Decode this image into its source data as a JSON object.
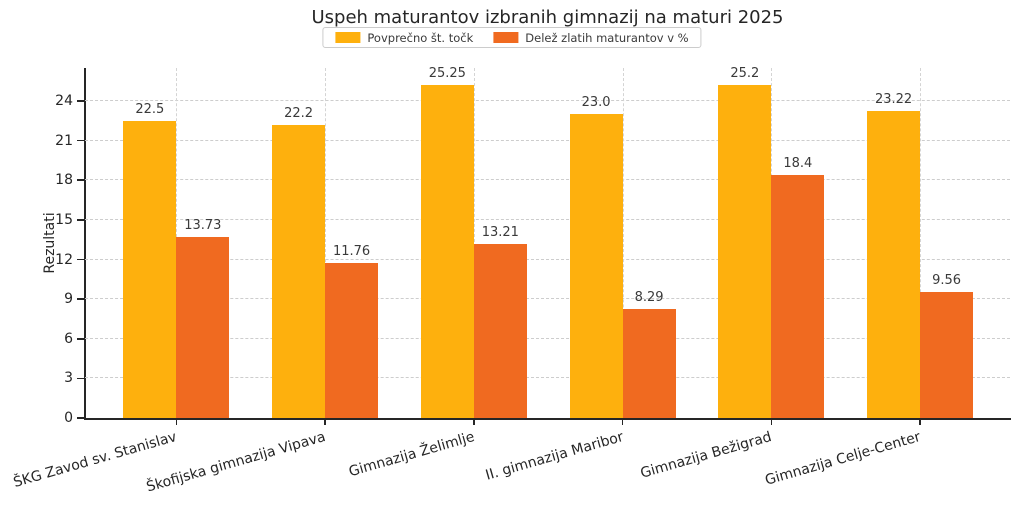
{
  "chart_data": {
    "type": "bar",
    "title": "Uspeh maturantov izbranih gimnazij na maturi 2025",
    "ylabel": "Rezultati",
    "xlabel": "",
    "categories": [
      "ŠKG Zavod sv. Stanislav",
      "Škofijska gimnazija Vipava",
      "Gimnazija Želimlje",
      "II. gimnazija Maribor",
      "Gimnazija Bežigrad",
      "Gimnazija Celje-Center"
    ],
    "series": [
      {
        "name": "Povprečno št. točk",
        "color": "#FEB00D",
        "values": [
          22.5,
          22.2,
          25.25,
          23.0,
          25.2,
          23.22
        ],
        "labels": [
          "22.5",
          "22.2",
          "25.25",
          "23.0",
          "25.2",
          "23.22"
        ]
      },
      {
        "name": "Delež zlatih maturantov v %",
        "color": "#F06A20",
        "values": [
          13.73,
          11.76,
          13.21,
          8.29,
          18.4,
          9.56
        ],
        "labels": [
          "13.73",
          "11.76",
          "13.21",
          "8.29",
          "18.4",
          "9.56"
        ]
      }
    ],
    "yticks": [
      0,
      3,
      6,
      9,
      12,
      15,
      18,
      21,
      24
    ],
    "ylim": [
      0,
      26.5
    ],
    "grid": true,
    "legend_position": "top-center"
  }
}
